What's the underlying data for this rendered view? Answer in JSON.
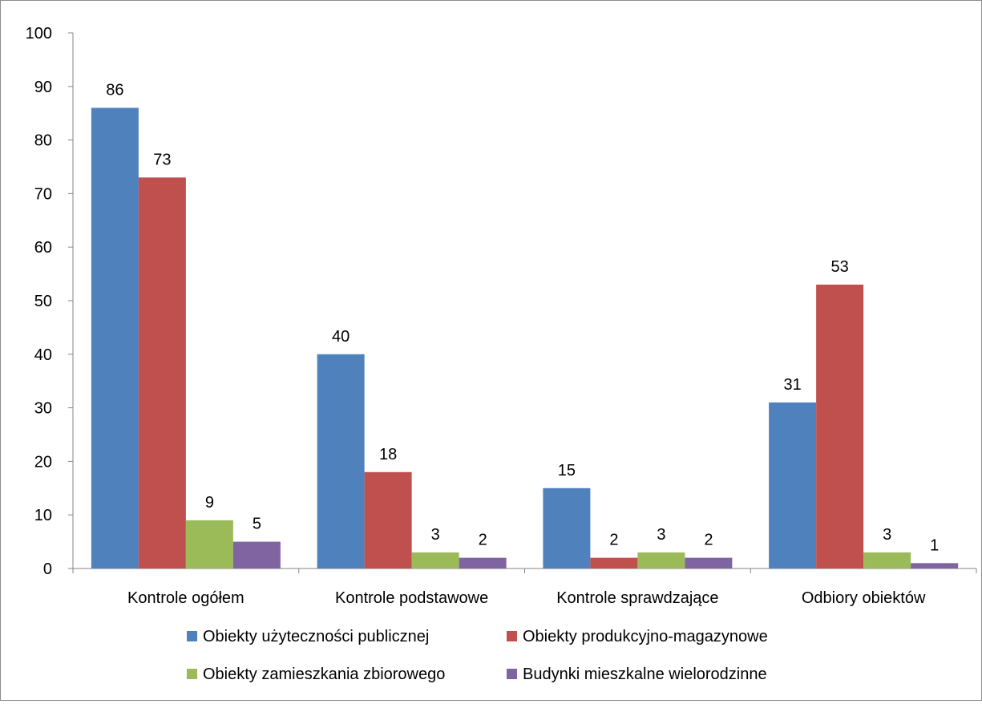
{
  "chart_data": {
    "type": "bar",
    "title": "",
    "xlabel": "",
    "ylabel": "",
    "categories": [
      "Kontrole ogółem",
      "Kontrole podstawowe",
      "Kontrole sprawdzające",
      "Odbiory obiektów"
    ],
    "series": [
      {
        "name": "Obiekty użyteczności publicznej",
        "values": [
          86,
          40,
          15,
          31
        ],
        "color": "#4F81BD"
      },
      {
        "name": "Obiekty produkcyjno-magazynowe",
        "values": [
          73,
          18,
          2,
          53
        ],
        "color": "#C0504D"
      },
      {
        "name": "Obiekty zamieszkania zbiorowego",
        "values": [
          9,
          3,
          3,
          3
        ],
        "color": "#9BBB59"
      },
      {
        "name": "Budynki mieszkalne wielorodzinne",
        "values": [
          5,
          2,
          2,
          1
        ],
        "color": "#8064A2"
      }
    ],
    "ylim": [
      0,
      100
    ],
    "yticks": [
      0,
      10,
      20,
      30,
      40,
      50,
      60,
      70,
      80,
      90,
      100
    ],
    "grid": false,
    "data_labels": true,
    "legend_position": "bottom"
  }
}
